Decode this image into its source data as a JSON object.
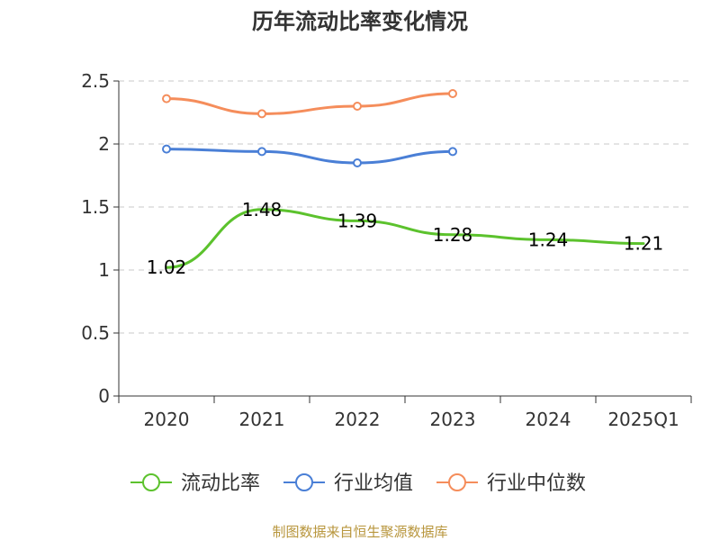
{
  "chart_data": {
    "type": "line",
    "title": "历年流动比率变化情况",
    "categories": [
      "2020",
      "2021",
      "2022",
      "2023",
      "2024",
      "2025Q1"
    ],
    "ylim": [
      0,
      2.5
    ],
    "yticks": [
      0,
      0.5,
      1,
      1.5,
      2,
      2.5
    ],
    "ytick_labels": [
      "0",
      "0.5",
      "1",
      "1.5",
      "2",
      "2.5"
    ],
    "grid": true,
    "legend_position": "bottom",
    "series": [
      {
        "name": "流动比率",
        "color": "#5cc22d",
        "values": [
          1.02,
          1.48,
          1.39,
          1.28,
          1.24,
          1.21
        ],
        "labels": [
          "1.02",
          "1.48",
          "1.39",
          "1.28",
          "1.24",
          "1.21"
        ],
        "show_labels": true,
        "show_markers": false
      },
      {
        "name": "行业均值",
        "color": "#4a7fd6",
        "values": [
          1.96,
          1.94,
          1.85,
          1.94,
          null,
          null
        ],
        "show_labels": false,
        "show_markers": true
      },
      {
        "name": "行业中位数",
        "color": "#f58d5b",
        "values": [
          2.36,
          2.24,
          2.3,
          2.4,
          null,
          null
        ],
        "show_labels": false,
        "show_markers": true
      }
    ],
    "source": "制图数据来自恒生聚源数据库"
  }
}
